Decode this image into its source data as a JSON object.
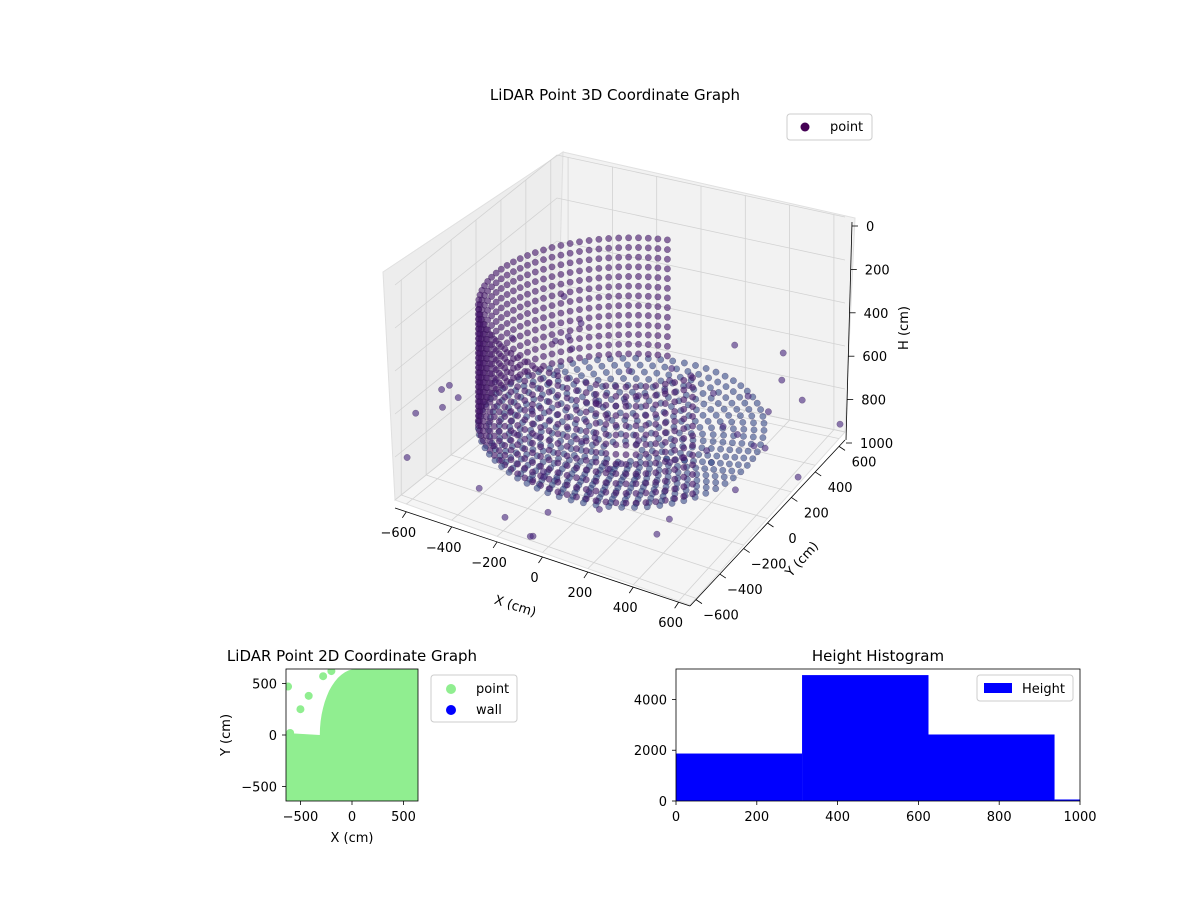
{
  "chart_data": [
    {
      "type": "scatter",
      "title": "LiDAR Point 3D Coordinate Graph",
      "xlabel": "X (cm)",
      "ylabel": "Y (cm)",
      "zlabel": "H (cm)",
      "x_ticks": [
        "−600",
        "−400",
        "−200",
        "0",
        "200",
        "400",
        "600"
      ],
      "y_ticks": [
        "−600",
        "−400",
        "−200",
        "0",
        "200",
        "400",
        "600"
      ],
      "z_ticks": [
        "0",
        "200",
        "400",
        "600",
        "800",
        "1000"
      ],
      "xlim": [
        -650,
        650
      ],
      "ylim": [
        -650,
        650
      ],
      "zlim": [
        0,
        1000
      ],
      "z_inverted": true,
      "legend": {
        "entries": [
          "point"
        ],
        "placement": "top-right"
      },
      "series": [
        {
          "name": "point",
          "description_shape": "cylindrical wall (radius ~600) plus floor bowl",
          "color": "#440154"
        }
      ],
      "grid": true
    },
    {
      "type": "scatter",
      "title": "LiDAR Point 2D Coordinate Graph",
      "xlabel": "X (cm)",
      "ylabel": "Y (cm)",
      "x_ticks": [
        "−500",
        "0",
        "500"
      ],
      "y_ticks": [
        "500",
        "0",
        "−500"
      ],
      "xlim": [
        -640,
        640
      ],
      "ylim": [
        -640,
        640
      ],
      "legend": {
        "entries": [
          "point",
          "wall"
        ],
        "placement": "outside-right"
      },
      "series": [
        {
          "name": "point",
          "color": "#90ee90"
        },
        {
          "name": "wall",
          "color": "#0000ff"
        }
      ],
      "grid": false
    },
    {
      "type": "bar",
      "title": "Height Histogram",
      "x_ticks": [
        "0",
        "200",
        "400",
        "600",
        "800",
        "1000"
      ],
      "y_ticks": [
        "0",
        "2000",
        "4000"
      ],
      "xlim": [
        0,
        1000
      ],
      "ylim": [
        0,
        5200
      ],
      "bins": [
        {
          "start": 0,
          "end": 312,
          "count": 1870
        },
        {
          "start": 312,
          "end": 625,
          "count": 4960
        },
        {
          "start": 625,
          "end": 937,
          "count": 2620
        },
        {
          "start": 937,
          "end": 1000,
          "count": 60
        }
      ],
      "legend": {
        "entries": [
          "Height"
        ],
        "placement": "top-right"
      },
      "series": [
        {
          "name": "Height",
          "color": "#0000ff"
        }
      ],
      "grid": false
    }
  ]
}
